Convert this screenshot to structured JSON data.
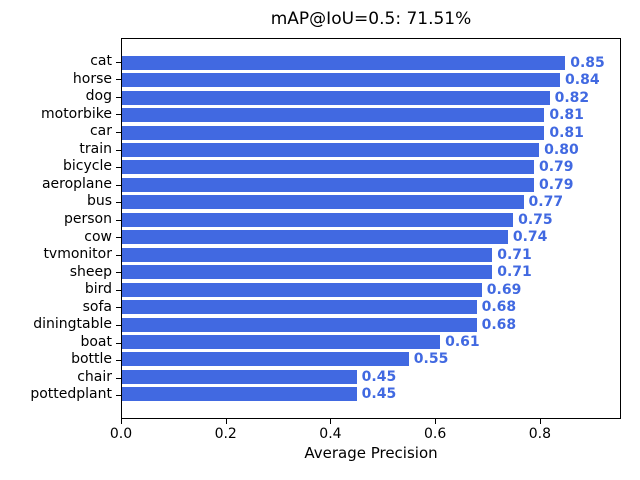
{
  "figure": {
    "title": "mAP@IoU=0.5: 71.51%",
    "xlabel": "Average Precision"
  },
  "colors": {
    "bar": "#4169e1",
    "value_label": "#4169e1",
    "axis": "#000000",
    "background": "#ffffff"
  },
  "chart_data": {
    "type": "bar",
    "orientation": "horizontal",
    "title": "mAP@IoU=0.5: 71.51%",
    "xlabel": "Average Precision",
    "ylabel": "",
    "categories": [
      "cat",
      "horse",
      "dog",
      "motorbike",
      "car",
      "train",
      "bicycle",
      "aeroplane",
      "bus",
      "person",
      "cow",
      "tvmonitor",
      "sheep",
      "bird",
      "sofa",
      "diningtable",
      "boat",
      "bottle",
      "chair",
      "pottedplant"
    ],
    "values": [
      0.85,
      0.84,
      0.82,
      0.81,
      0.81,
      0.8,
      0.79,
      0.79,
      0.77,
      0.75,
      0.74,
      0.71,
      0.71,
      0.69,
      0.68,
      0.68,
      0.61,
      0.55,
      0.45,
      0.45
    ],
    "value_labels": [
      "0.85",
      "0.84",
      "0.82",
      "0.81",
      "0.81",
      "0.80",
      "0.79",
      "0.79",
      "0.77",
      "0.75",
      "0.74",
      "0.71",
      "0.71",
      "0.69",
      "0.68",
      "0.68",
      "0.61",
      "0.55",
      "0.45",
      "0.45"
    ],
    "xlim": [
      0,
      0.955
    ],
    "xticks": [
      0.0,
      0.2,
      0.4,
      0.6,
      0.8
    ],
    "xtick_labels": [
      "0.0",
      "0.2",
      "0.4",
      "0.6",
      "0.8"
    ],
    "grid": false,
    "bar_color": "#4169e1",
    "legend_position": "none"
  }
}
